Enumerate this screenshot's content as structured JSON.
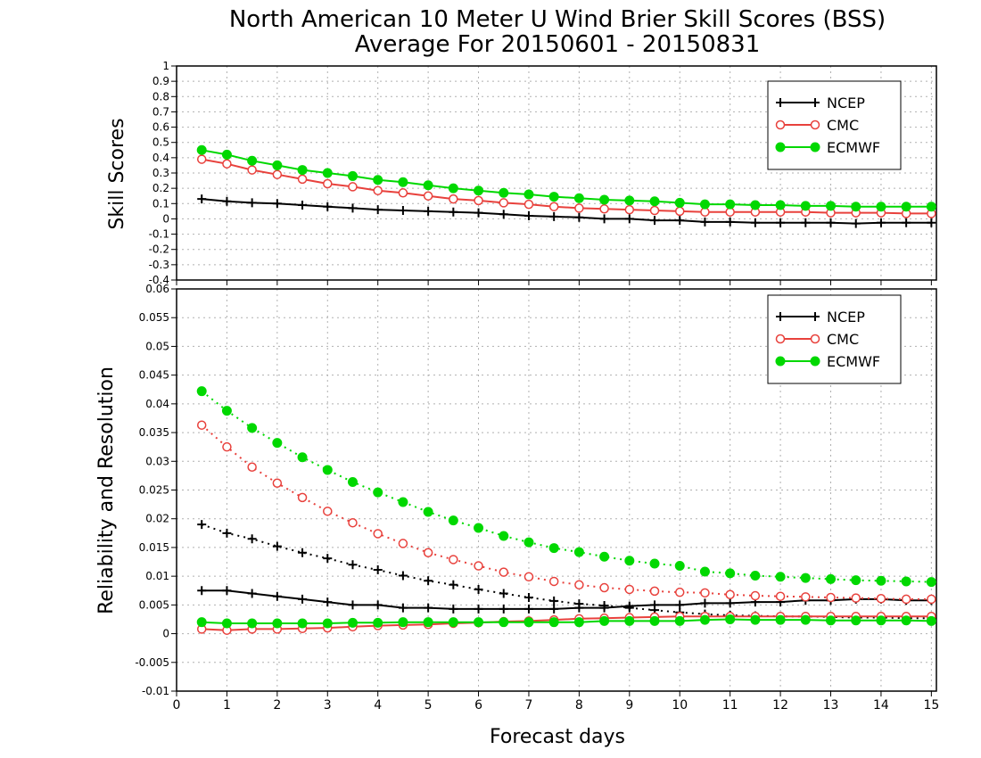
{
  "title_line1": "North American 10 Meter U Wind Brier Skill Scores (BSS)",
  "title_line2": "Average For 20150601 - 20150831",
  "xlabel": "Forecast days",
  "colors": {
    "NCEP": "#000000",
    "CMC": "#e8413c",
    "ECMWF": "#00d800"
  },
  "chart_data": [
    {
      "type": "line",
      "ylabel": "Skill Scores",
      "xlim": [
        0,
        15.1
      ],
      "ylim": [
        -0.4,
        1
      ],
      "xticks": [
        "0",
        "1",
        "2",
        "3",
        "4",
        "5",
        "6",
        "7",
        "8",
        "9",
        "10",
        "11",
        "12",
        "13",
        "14",
        "15"
      ],
      "yticks": [
        "-0.4",
        "-0.3",
        "-0.2",
        "-0.1",
        "0",
        "0.1",
        "0.2",
        "0.3",
        "0.4",
        "0.5",
        "0.6",
        "0.7",
        "0.8",
        "0.9",
        "1"
      ],
      "legend": [
        "NCEP",
        "CMC",
        "ECMWF"
      ],
      "legend_position": "top-right",
      "grid": true,
      "x": [
        0.5,
        1,
        1.5,
        2,
        2.5,
        3,
        3.5,
        4,
        4.5,
        5,
        5.5,
        6,
        6.5,
        7,
        7.5,
        8,
        8.5,
        9,
        9.5,
        10,
        10.5,
        11,
        11.5,
        12,
        12.5,
        13,
        13.5,
        14,
        14.5,
        15
      ],
      "series": [
        {
          "name": "NCEP",
          "marker": "plus",
          "style": "solid",
          "values": [
            0.13,
            0.115,
            0.105,
            0.1,
            0.09,
            0.08,
            0.07,
            0.06,
            0.055,
            0.05,
            0.045,
            0.04,
            0.03,
            0.02,
            0.015,
            0.01,
            0,
            0,
            -0.01,
            -0.01,
            -0.02,
            -0.02,
            -0.025,
            -0.025,
            -0.025,
            -0.025,
            -0.03,
            -0.025,
            -0.025,
            -0.025
          ]
        },
        {
          "name": "CMC",
          "marker": "open-circle",
          "style": "solid",
          "values": [
            0.39,
            0.36,
            0.32,
            0.29,
            0.26,
            0.23,
            0.21,
            0.185,
            0.17,
            0.15,
            0.13,
            0.12,
            0.105,
            0.095,
            0.08,
            0.07,
            0.065,
            0.06,
            0.055,
            0.05,
            0.045,
            0.045,
            0.045,
            0.045,
            0.045,
            0.04,
            0.04,
            0.04,
            0.035,
            0.035
          ]
        },
        {
          "name": "ECMWF",
          "marker": "filled-circle",
          "style": "solid",
          "values": [
            0.45,
            0.42,
            0.38,
            0.35,
            0.32,
            0.3,
            0.28,
            0.255,
            0.24,
            0.22,
            0.2,
            0.185,
            0.17,
            0.16,
            0.145,
            0.135,
            0.125,
            0.12,
            0.115,
            0.105,
            0.095,
            0.095,
            0.09,
            0.09,
            0.085,
            0.085,
            0.08,
            0.08,
            0.08,
            0.08
          ]
        }
      ]
    },
    {
      "type": "line",
      "ylabel": "Reliability and Resolution",
      "xlim": [
        0,
        15.1
      ],
      "ylim": [
        -0.01,
        0.06
      ],
      "xticks": [
        "0",
        "1",
        "2",
        "3",
        "4",
        "5",
        "6",
        "7",
        "8",
        "9",
        "10",
        "11",
        "12",
        "13",
        "14",
        "15"
      ],
      "yticks": [
        "-0.01",
        "-0.005",
        "0",
        "0.005",
        "0.01",
        "0.015",
        "0.02",
        "0.025",
        "0.03",
        "0.035",
        "0.04",
        "0.045",
        "0.05",
        "0.055",
        "0.06"
      ],
      "legend": [
        "NCEP",
        "CMC",
        "ECMWF"
      ],
      "legend_position": "top-right",
      "grid": true,
      "x": [
        0.5,
        1,
        1.5,
        2,
        2.5,
        3,
        3.5,
        4,
        4.5,
        5,
        5.5,
        6,
        6.5,
        7,
        7.5,
        8,
        8.5,
        9,
        9.5,
        10,
        10.5,
        11,
        11.5,
        12,
        12.5,
        13,
        13.5,
        14,
        14.5,
        15
      ],
      "series": [
        {
          "name": "NCEP",
          "metric": "reliability",
          "marker": "plus",
          "style": "solid",
          "values": [
            0.0075,
            0.0075,
            0.007,
            0.0065,
            0.006,
            0.0055,
            0.005,
            0.005,
            0.0045,
            0.0045,
            0.0043,
            0.0043,
            0.0043,
            0.0043,
            0.0043,
            0.0045,
            0.0045,
            0.0048,
            0.005,
            0.005,
            0.0053,
            0.0053,
            0.0055,
            0.0055,
            0.0058,
            0.0058,
            0.006,
            0.006,
            0.0058,
            0.0058
          ]
        },
        {
          "name": "NCEP",
          "metric": "resolution",
          "marker": "plus",
          "style": "dotted",
          "values": [
            0.019,
            0.0175,
            0.0165,
            0.0152,
            0.0141,
            0.0131,
            0.012,
            0.0111,
            0.0101,
            0.0092,
            0.0085,
            0.0077,
            0.007,
            0.0063,
            0.0057,
            0.0052,
            0.0049,
            0.0045,
            0.0041,
            0.0037,
            0.0034,
            0.0032,
            0.0031,
            0.003,
            0.003,
            0.0029,
            0.0028,
            0.0028,
            0.0027,
            0.0027
          ]
        },
        {
          "name": "CMC",
          "metric": "reliability",
          "marker": "open-circle",
          "style": "solid",
          "values": [
            0.0008,
            0.0006,
            0.0008,
            0.0008,
            0.0009,
            0.001,
            0.0012,
            0.0014,
            0.0015,
            0.0016,
            0.0018,
            0.0019,
            0.0021,
            0.0022,
            0.0024,
            0.0026,
            0.0027,
            0.0028,
            0.0029,
            0.003,
            0.003,
            0.003,
            0.003,
            0.003,
            0.003,
            0.003,
            0.003,
            0.003,
            0.003,
            0.003
          ]
        },
        {
          "name": "CMC",
          "metric": "resolution",
          "marker": "open-circle",
          "style": "dotted",
          "values": [
            0.0363,
            0.0325,
            0.029,
            0.0262,
            0.0237,
            0.0213,
            0.0193,
            0.0174,
            0.0157,
            0.0141,
            0.0129,
            0.0118,
            0.0107,
            0.0099,
            0.0091,
            0.0085,
            0.008,
            0.0077,
            0.0074,
            0.0072,
            0.0071,
            0.0068,
            0.0066,
            0.0065,
            0.0064,
            0.0063,
            0.0062,
            0.0061,
            0.006,
            0.006
          ]
        },
        {
          "name": "ECMWF",
          "metric": "reliability",
          "marker": "filled-circle",
          "style": "solid",
          "values": [
            0.002,
            0.0018,
            0.0018,
            0.0018,
            0.0018,
            0.0018,
            0.0019,
            0.0019,
            0.002,
            0.002,
            0.002,
            0.002,
            0.002,
            0.002,
            0.002,
            0.002,
            0.0022,
            0.0022,
            0.0022,
            0.0022,
            0.0024,
            0.0025,
            0.0024,
            0.0024,
            0.0024,
            0.0023,
            0.0023,
            0.0023,
            0.0023,
            0.0022
          ]
        },
        {
          "name": "ECMWF",
          "metric": "resolution",
          "marker": "filled-circle",
          "style": "dotted",
          "values": [
            0.0422,
            0.0388,
            0.0358,
            0.0332,
            0.0307,
            0.0285,
            0.0264,
            0.0246,
            0.0229,
            0.0212,
            0.0197,
            0.0184,
            0.017,
            0.0159,
            0.0149,
            0.0142,
            0.0134,
            0.0127,
            0.0122,
            0.0118,
            0.0108,
            0.0105,
            0.0101,
            0.0099,
            0.0097,
            0.0095,
            0.0093,
            0.0092,
            0.0091,
            0.009
          ]
        }
      ]
    }
  ]
}
